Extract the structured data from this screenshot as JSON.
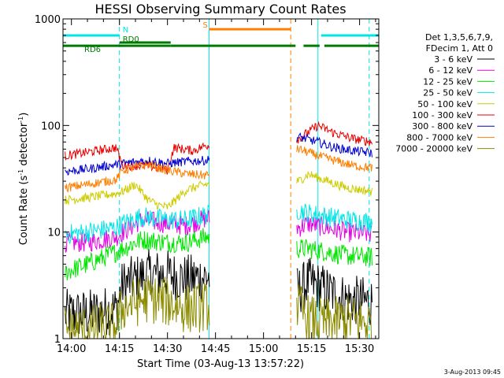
{
  "chart_data": {
    "type": "line",
    "title": "HESSI Observing Summary Count Rates",
    "xlabel": "Start Time (03-Aug-13 13:57:22)",
    "ylabel_main": "Count Rate (s",
    "ylabel_sup1": "-1",
    "ylabel_mid": " detector",
    "ylabel_sup2": "-1",
    "ylabel_end": ")",
    "y_scale": "log",
    "ylim": [
      1,
      1000
    ],
    "xlim": [
      "13:57:22",
      "15:36:00"
    ],
    "x_ticks": [
      "14:00",
      "14:15",
      "14:30",
      "14:45",
      "15:00",
      "15:15",
      "15:30"
    ],
    "y_ticks": [
      "1",
      "10",
      "100",
      "1000"
    ],
    "legend_header": [
      "Det 1,3,5,6,7,9,",
      "FDecim 1, Att 0"
    ],
    "legend_position": "right",
    "flags": [
      {
        "label": "N",
        "color": "#00e5e5",
        "y": 700,
        "segments": [
          [
            "13:57:22",
            "14:15:00"
          ],
          [
            "15:18:00",
            "15:36:00"
          ]
        ]
      },
      {
        "label": "RD0",
        "color": "#007a00",
        "y": 600,
        "segments": [
          [
            "14:15:00",
            "14:31:00"
          ]
        ]
      },
      {
        "label": "RD6",
        "color": "#007a00",
        "y": 560,
        "segments": [
          [
            "13:57:22",
            "14:31:00"
          ],
          [
            "14:31:00",
            "15:10:00"
          ],
          [
            "15:12:30",
            "15:17:30"
          ],
          [
            "15:19:00",
            "15:36:00"
          ]
        ]
      },
      {
        "label": "S",
        "color": "#ff7f00",
        "y": 800,
        "segments": [
          [
            "14:43:00",
            "15:08:30"
          ]
        ]
      }
    ],
    "boundaries": [
      {
        "time": "14:15:00",
        "color": "#00e5e5",
        "dashed": true
      },
      {
        "time": "14:43:00",
        "color": "#00e5e5",
        "dashed": false
      },
      {
        "time": "15:08:30",
        "color": "#ff7f00",
        "dashed": true
      },
      {
        "time": "15:17:00",
        "color": "#00e5e5",
        "dashed": false
      },
      {
        "time": "15:33:00",
        "color": "#00e5e5",
        "dashed": true
      }
    ],
    "series": [
      {
        "name": "3 - 6 keV",
        "color": "#000000",
        "x": [
          "13:58",
          "14:05",
          "14:14",
          "14:16",
          "14:24",
          "14:30",
          "14:36",
          "14:42",
          "15:11",
          "15:14",
          "15:20",
          "15:26",
          "15:34"
        ],
        "values": [
          1.7,
          1.7,
          1.9,
          3.2,
          4.0,
          4.0,
          3.6,
          3.8,
          2.8,
          3.4,
          2.8,
          2.3,
          2.2
        ]
      },
      {
        "name": "6 - 12 keV",
        "color": "#e600e6",
        "x": [
          "13:58",
          "14:05",
          "14:14",
          "14:16",
          "14:22",
          "14:30",
          "14:36",
          "14:42",
          "15:11",
          "15:14",
          "15:20",
          "15:26",
          "15:34"
        ],
        "values": [
          8.0,
          8.0,
          9.0,
          10.0,
          13.0,
          12.0,
          11.5,
          13.5,
          11.0,
          12.0,
          11.0,
          10.0,
          9.5
        ]
      },
      {
        "name": "12 - 25 keV",
        "color": "#00e600",
        "x": [
          "13:58",
          "14:05",
          "14:14",
          "14:16",
          "14:22",
          "14:30",
          "14:36",
          "14:42",
          "15:11",
          "15:14",
          "15:20",
          "15:26",
          "15:34"
        ],
        "values": [
          4.2,
          5.0,
          6.5,
          7.0,
          8.5,
          8.0,
          8.0,
          9.0,
          7.0,
          7.0,
          6.5,
          6.0,
          5.8
        ]
      },
      {
        "name": "25 - 50 keV",
        "color": "#00e5e5",
        "x": [
          "13:58",
          "14:05",
          "14:14",
          "14:16",
          "14:22",
          "14:30",
          "14:36",
          "14:42",
          "15:11",
          "15:14",
          "15:20",
          "15:26",
          "15:34"
        ],
        "values": [
          9.5,
          10.0,
          11.0,
          12.0,
          14.0,
          13.0,
          13.0,
          14.5,
          16.0,
          15.0,
          14.0,
          13.0,
          12.5
        ]
      },
      {
        "name": "50 - 100 keV",
        "color": "#cccc00",
        "x": [
          "13:58",
          "14:05",
          "14:14",
          "14:16",
          "14:20",
          "14:24",
          "14:27",
          "14:30",
          "14:36",
          "14:42",
          "15:11",
          "15:14",
          "15:20",
          "15:26",
          "15:34"
        ],
        "values": [
          20.0,
          21.0,
          23.0,
          24.0,
          28.0,
          20.0,
          18.0,
          17.0,
          25.0,
          28.0,
          30.0,
          35.0,
          30.0,
          26.0,
          24.0
        ]
      },
      {
        "name": "100 - 300 keV",
        "color": "#e60000",
        "x": [
          "13:58",
          "14:05",
          "14:14",
          "14:16",
          "14:24",
          "14:30",
          "14:32",
          "14:38",
          "14:42",
          "15:11",
          "15:17",
          "15:22",
          "15:28",
          "15:34"
        ],
        "values": [
          52.0,
          56.0,
          62.0,
          42.0,
          42.0,
          38.0,
          62.0,
          58.0,
          65.0,
          75.0,
          100.0,
          85.0,
          75.0,
          70.0
        ]
      },
      {
        "name": "300 - 800 keV",
        "color": "#0000cc",
        "x": [
          "13:58",
          "14:05",
          "14:14",
          "14:16",
          "14:24",
          "14:30",
          "14:36",
          "14:42",
          "15:11",
          "15:17",
          "15:22",
          "15:28",
          "15:34"
        ],
        "values": [
          37.0,
          39.0,
          43.0,
          44.0,
          47.0,
          44.0,
          46.0,
          47.0,
          78.0,
          70.0,
          62.0,
          58.0,
          55.0
        ]
      },
      {
        "name": "800 - 7000 keV",
        "color": "#ff7f00",
        "x": [
          "13:58",
          "14:05",
          "14:14",
          "14:16",
          "14:24",
          "14:30",
          "14:36",
          "14:42",
          "15:11",
          "15:17",
          "15:22",
          "15:28",
          "15:34"
        ],
        "values": [
          26.0,
          28.0,
          31.0,
          38.0,
          43.0,
          38.0,
          35.0,
          34.0,
          60.0,
          52.0,
          47.0,
          42.0,
          40.0
        ]
      },
      {
        "name": "7000 - 20000 keV",
        "color": "#8b8b00",
        "x": [
          "13:58",
          "14:05",
          "14:14",
          "14:16",
          "14:24",
          "14:30",
          "14:36",
          "14:42",
          "15:11",
          "15:14",
          "15:20",
          "15:26",
          "15:34"
        ],
        "values": [
          1.2,
          1.2,
          1.3,
          2.0,
          2.4,
          2.2,
          1.9,
          2.0,
          2.0,
          1.5,
          1.4,
          1.5,
          1.4
        ]
      }
    ]
  },
  "footer": {
    "stamp": "3-Aug-2013 09:45"
  }
}
